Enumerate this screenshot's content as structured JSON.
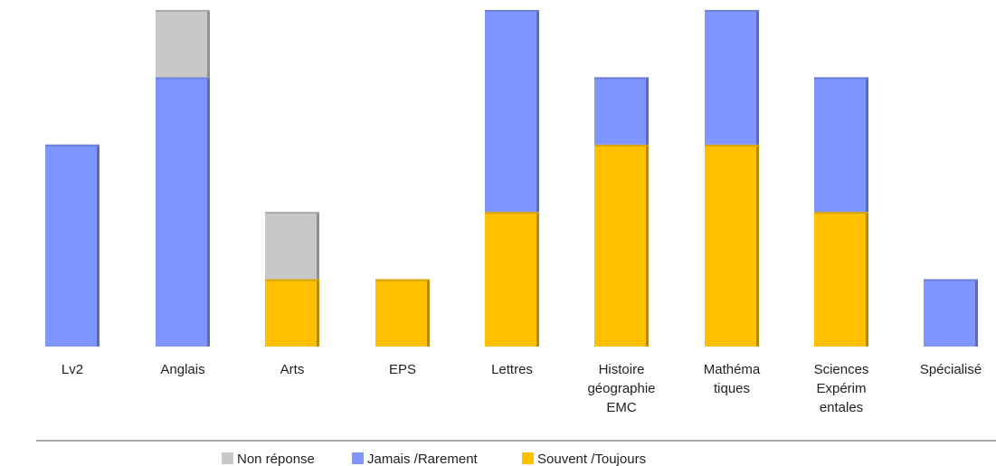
{
  "chart_data": {
    "type": "bar",
    "stacked": true,
    "title": "",
    "xlabel": "",
    "ylabel": "",
    "ylim": [
      0,
      5
    ],
    "grid": false,
    "legend_position": "bottom",
    "categories": [
      "Lv2",
      "Anglais",
      "Arts",
      "EPS",
      "Lettres",
      "Histoire géographie EMC",
      "Mathéma tiques",
      "Sciences Expérim entales",
      "Spécialisé"
    ],
    "category_label_lines": [
      [
        "Lv2"
      ],
      [
        "Anglais"
      ],
      [
        "Arts"
      ],
      [
        "EPS"
      ],
      [
        "Lettres"
      ],
      [
        "Histoire",
        "géographie",
        "EMC"
      ],
      [
        "Mathéma",
        "tiques"
      ],
      [
        "Sciences",
        "Expérim",
        "entales"
      ],
      [
        "Spécialisé"
      ]
    ],
    "series": [
      {
        "name": "Souvent /Toujours",
        "color": "#ffc000",
        "values": [
          0,
          0,
          1,
          1,
          2,
          3,
          3,
          2,
          0
        ]
      },
      {
        "name": "Jamais /Rarement",
        "color": "#7f95ff",
        "values": [
          3,
          4,
          0,
          0,
          3,
          1,
          2,
          2,
          1
        ]
      },
      {
        "name": "Non réponse",
        "color": "#c8c8c8",
        "values": [
          0,
          1,
          1,
          0,
          0,
          0,
          0,
          0,
          0
        ]
      }
    ],
    "legend_order": [
      "Non réponse",
      "Jamais /Rarement",
      "Souvent /Toujours"
    ]
  }
}
